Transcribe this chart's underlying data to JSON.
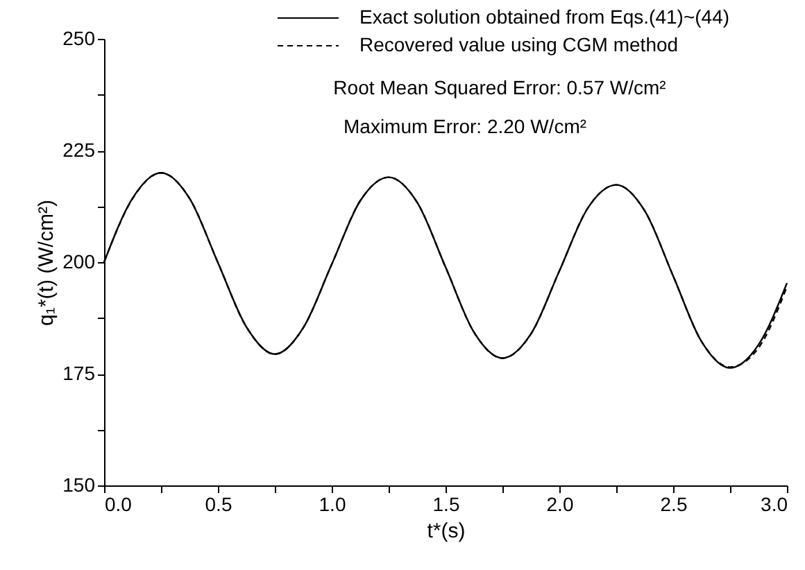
{
  "chart_data": {
    "type": "line",
    "xlabel": "t*(s)",
    "ylabel": "q₁*(t)  (W/cm²)",
    "x": [
      0,
      0.125,
      0.25,
      0.375,
      0.5,
      0.625,
      0.75,
      0.875,
      1,
      1.125,
      1.25,
      1.375,
      1.5,
      1.625,
      1.75,
      1.875,
      2,
      2.125,
      2.25,
      2.375,
      2.5,
      2.625,
      2.75,
      2.875,
      3
    ],
    "series": [
      {
        "name": "Exact solution obtained from Eqs.(41)~(44)",
        "color": "#000000",
        "line_style": "solid",
        "values": [
          200,
          214.3,
          220,
          214.3,
          199.9,
          185.5,
          179.4,
          185.3,
          199.5,
          213.7,
          219,
          213.4,
          198.9,
          184.3,
          178.5,
          183.9,
          198,
          212.1,
          217.3,
          211.5,
          196.9,
          182.2,
          176.3,
          181.5,
          195.3
        ]
      },
      {
        "name": "Recovered value using CGM method",
        "color": "#000000",
        "line_style": "dashed",
        "values": [
          200,
          214.2,
          220,
          214.3,
          199.9,
          185.5,
          179.4,
          185.3,
          199.5,
          213.7,
          219,
          213.4,
          198.9,
          184.3,
          178.5,
          183.9,
          198,
          212.1,
          217.3,
          211.5,
          196.9,
          182.2,
          176.5,
          180.8,
          194.5
        ]
      }
    ],
    "xlim": [
      0,
      3
    ],
    "xticks": [
      {
        "value": 0,
        "label": "0.0"
      },
      {
        "value": 0.25,
        "label": null
      },
      0.5,
      {
        "value": 0.75,
        "label": null
      },
      {
        "value": 1,
        "label": "1.0"
      },
      {
        "value": 1.25,
        "label": null
      },
      1.5,
      {
        "value": 1.75,
        "label": null
      },
      {
        "value": 2,
        "label": "2.0"
      },
      {
        "value": 2.25,
        "label": null
      },
      2.5,
      {
        "value": 2.75,
        "label": null
      },
      {
        "value": 3,
        "label": "3.0"
      }
    ],
    "ylim": [
      150,
      250
    ],
    "yticks": [
      150,
      {
        "value": 162.5,
        "label": null
      },
      175,
      {
        "value": 187.5,
        "label": null
      },
      200,
      {
        "value": 212.5,
        "label": null
      },
      225,
      {
        "value": 237.5,
        "label": null
      },
      250
    ],
    "annotations": [
      "Root Mean Squared Error: 0.57 W/cm²",
      "Maximum Error: 2.20 W/cm²"
    ],
    "legend": "top",
    "grid": false
  }
}
